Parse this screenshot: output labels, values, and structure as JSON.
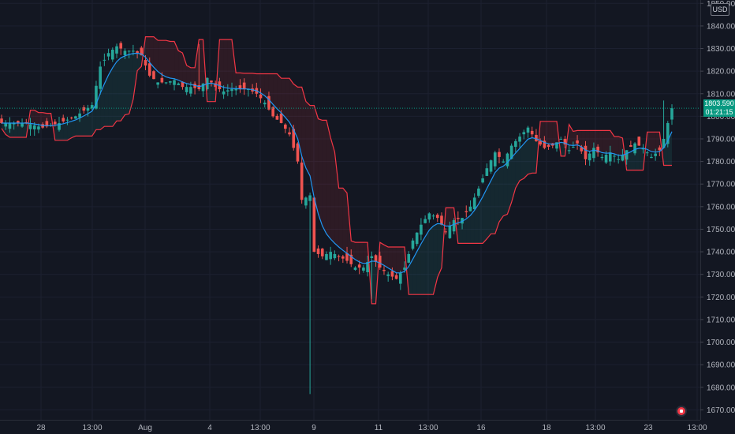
{
  "chart_data": {
    "type": "candlestick",
    "y_axis": {
      "ticks": [
        1850,
        1840,
        1830,
        1820,
        1810,
        1800,
        1790,
        1780,
        1770,
        1760,
        1750,
        1740,
        1730,
        1720,
        1710,
        1700,
        1690,
        1680,
        1670
      ],
      "tick_labels": [
        "1850.000",
        "1840.000",
        "1830.000",
        "1820.000",
        "1810.000",
        "1800.000",
        "1790.000",
        "1780.000",
        "1770.000",
        "1760.000",
        "1750.000",
        "1740.000",
        "1730.000",
        "1720.000",
        "1710.000",
        "1700.000",
        "1690.000",
        "1680.000",
        "1670.000"
      ],
      "range": [
        1665.6,
        1851.5
      ],
      "currency": "USD"
    },
    "x_axis": {
      "tick_labels": [
        "28",
        "13:00",
        "Aug",
        "4",
        "13:00",
        "9",
        "11",
        "13:00",
        "16",
        "18",
        "13:00",
        "23",
        "13:00"
      ]
    },
    "last_price": "1803.590",
    "countdown": "01:21:15",
    "bar_count": 142,
    "price_path": [
      [
        0,
        1797
      ],
      [
        6,
        1797
      ],
      [
        10,
        1795
      ],
      [
        14,
        1797
      ],
      [
        18,
        1800
      ],
      [
        22,
        1805
      ],
      [
        24,
        1822
      ],
      [
        26,
        1828
      ],
      [
        28,
        1831
      ],
      [
        30,
        1829
      ],
      [
        32,
        1829
      ],
      [
        34,
        1827
      ],
      [
        36,
        1818
      ],
      [
        38,
        1815
      ],
      [
        40,
        1815
      ],
      [
        42,
        1816
      ],
      [
        44,
        1813
      ],
      [
        46,
        1813
      ],
      [
        48,
        1812
      ],
      [
        50,
        1817
      ],
      [
        52,
        1813
      ],
      [
        54,
        1811
      ],
      [
        56,
        1812
      ],
      [
        58,
        1812
      ],
      [
        60,
        1812
      ],
      [
        62,
        1810
      ],
      [
        64,
        1806
      ],
      [
        66,
        1800
      ],
      [
        68,
        1797
      ],
      [
        70,
        1792
      ],
      [
        72,
        1780
      ],
      [
        73,
        1763
      ],
      [
        75,
        1765
      ],
      [
        76,
        1740
      ],
      [
        78,
        1738
      ],
      [
        80,
        1740
      ],
      [
        82,
        1738
      ],
      [
        84,
        1736
      ],
      [
        86,
        1733
      ],
      [
        88,
        1733
      ],
      [
        90,
        1738
      ],
      [
        92,
        1733
      ],
      [
        94,
        1730
      ],
      [
        96,
        1728
      ],
      [
        98,
        1733
      ],
      [
        100,
        1745
      ],
      [
        102,
        1752
      ],
      [
        104,
        1757
      ],
      [
        106,
        1755
      ],
      [
        108,
        1749
      ],
      [
        110,
        1754
      ],
      [
        112,
        1755
      ],
      [
        114,
        1760
      ],
      [
        116,
        1768
      ],
      [
        118,
        1777
      ],
      [
        120,
        1784
      ],
      [
        122,
        1780
      ],
      [
        124,
        1787
      ],
      [
        126,
        1791
      ],
      [
        128,
        1795
      ],
      [
        130,
        1789
      ],
      [
        132,
        1786
      ],
      [
        134,
        1787
      ],
      [
        136,
        1790
      ],
      [
        138,
        1785
      ],
      [
        140,
        1788
      ],
      [
        142,
        1781
      ],
      [
        144,
        1786
      ],
      [
        146,
        1782
      ],
      [
        148,
        1784
      ],
      [
        150,
        1781
      ],
      [
        152,
        1785
      ],
      [
        154,
        1788
      ],
      [
        156,
        1786
      ],
      [
        158,
        1782
      ],
      [
        160,
        1785
      ],
      [
        161,
        1790
      ],
      [
        162,
        1797
      ],
      [
        163,
        1803.59
      ]
    ],
    "spikes": [
      {
        "i": 48,
        "high": 1832
      },
      {
        "i": 75,
        "low": 1677
      },
      {
        "i": 90,
        "low": 1719
      },
      {
        "i": 161,
        "high": 1807
      }
    ],
    "colors": {
      "up": "#26a69a",
      "down": "#ef5350",
      "ma": "#2196f3",
      "band": "#f23645"
    }
  }
}
